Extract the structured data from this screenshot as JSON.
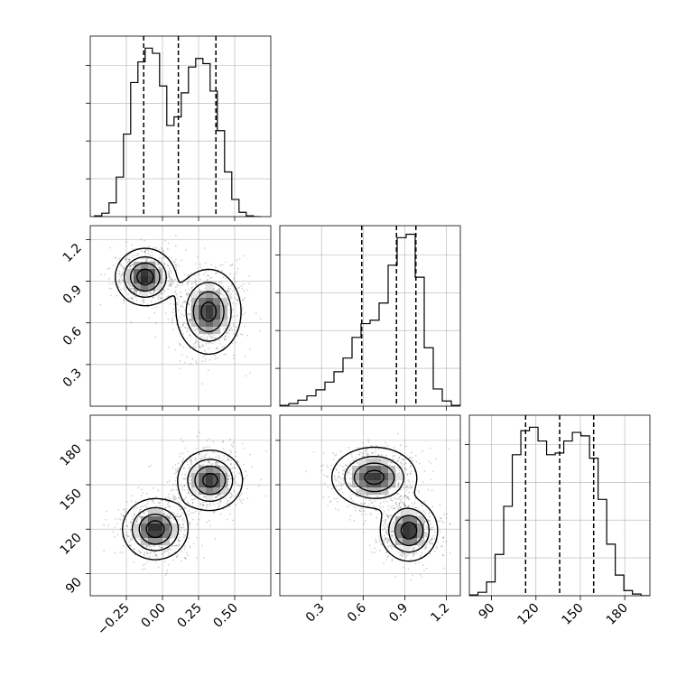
{
  "chart_data": {
    "type": "corner",
    "parameters": [
      {
        "range": [
          -0.5,
          0.75
        ],
        "ticks": [
          -0.25,
          0.0,
          0.25,
          0.5
        ],
        "tick_labels": [
          "−0.25",
          "0.00",
          "0.25",
          "0.50"
        ],
        "quantiles": [
          -0.13,
          0.11,
          0.37
        ],
        "histogram": {
          "bins": [
            -0.47,
            -0.42,
            -0.37,
            -0.32,
            -0.27,
            -0.22,
            -0.17,
            -0.12,
            -0.07,
            -0.02,
            0.03,
            0.08,
            0.13,
            0.18,
            0.23,
            0.28,
            0.33,
            0.38,
            0.43,
            0.48,
            0.53,
            0.58,
            0.63,
            0.68
          ],
          "counts": [
            0.005,
            0.02,
            0.08,
            0.23,
            0.48,
            0.78,
            0.9,
            0.98,
            0.95,
            0.76,
            0.53,
            0.58,
            0.72,
            0.87,
            0.92,
            0.89,
            0.73,
            0.5,
            0.26,
            0.1,
            0.025,
            0.005,
            0.0
          ]
        }
      },
      {
        "range": [
          0.0,
          1.3
        ],
        "ticks": [
          0.3,
          0.6,
          0.9,
          1.2
        ],
        "tick_labels": [
          "0.3",
          "0.6",
          "0.9",
          "1.2"
        ],
        "quantiles": [
          0.59,
          0.84,
          0.98
        ],
        "histogram": {
          "bins": [
            0.0,
            0.065,
            0.13,
            0.195,
            0.26,
            0.325,
            0.39,
            0.455,
            0.52,
            0.585,
            0.65,
            0.715,
            0.78,
            0.845,
            0.91,
            0.975,
            1.04,
            1.105,
            1.17,
            1.235,
            1.3
          ],
          "counts": [
            0.005,
            0.015,
            0.035,
            0.06,
            0.095,
            0.14,
            0.2,
            0.28,
            0.4,
            0.48,
            0.5,
            0.6,
            0.82,
            0.98,
            1.0,
            0.75,
            0.34,
            0.1,
            0.03,
            0.005
          ]
        }
      },
      {
        "range": [
          75,
          197
        ],
        "ticks": [
          90,
          120,
          150,
          180
        ],
        "tick_labels": [
          "90",
          "120",
          "150",
          "180"
        ],
        "quantiles": [
          113,
          136,
          159
        ],
        "histogram": {
          "bins": [
            75,
            80.8,
            86.6,
            92.4,
            98.2,
            104,
            109.8,
            115.6,
            121.4,
            127.2,
            133,
            138.8,
            144.6,
            150.4,
            156.2,
            162,
            167.8,
            173.6,
            179.4,
            185.2,
            191,
            197
          ],
          "counts": [
            0.005,
            0.02,
            0.08,
            0.24,
            0.52,
            0.82,
            0.96,
            0.98,
            0.9,
            0.82,
            0.83,
            0.9,
            0.95,
            0.93,
            0.8,
            0.56,
            0.3,
            0.12,
            0.03,
            0.01,
            0.0
          ]
        }
      }
    ],
    "panels_2d": [
      {
        "x_param": 0,
        "y_param": 1,
        "modes": [
          {
            "x": -0.12,
            "y": 0.93,
            "sx": 0.1,
            "sy": 0.1,
            "w": 1.0
          },
          {
            "x": 0.32,
            "y": 0.68,
            "sx": 0.11,
            "sy": 0.15,
            "w": 0.95
          }
        ]
      },
      {
        "x_param": 0,
        "y_param": 2,
        "modes": [
          {
            "x": -0.05,
            "y": 120,
            "sx": 0.11,
            "sy": 10,
            "w": 1.0
          },
          {
            "x": 0.33,
            "y": 153,
            "sx": 0.11,
            "sy": 10,
            "w": 0.95
          }
        ]
      },
      {
        "x_param": 1,
        "y_param": 2,
        "modes": [
          {
            "x": 0.93,
            "y": 119,
            "sx": 0.1,
            "sy": 10,
            "w": 1.0
          },
          {
            "x": 0.68,
            "y": 155,
            "sx": 0.15,
            "sy": 10,
            "w": 0.95
          }
        ]
      }
    ],
    "grid": true,
    "colors": {
      "line": "#000000",
      "grid": "#b0b0b0",
      "points": "#000000"
    }
  }
}
